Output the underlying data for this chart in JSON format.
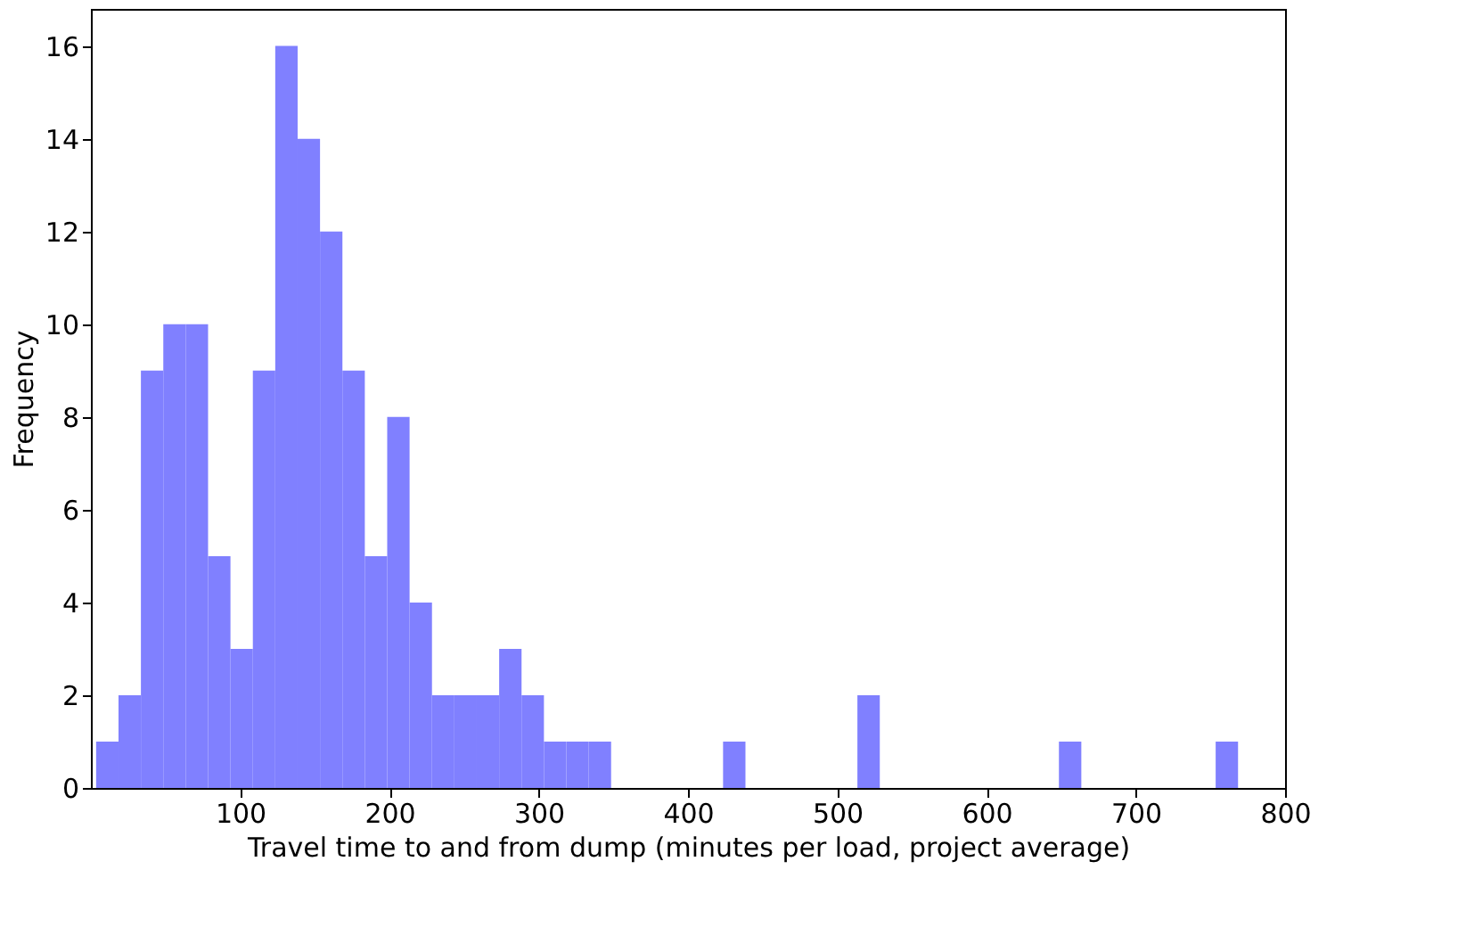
{
  "chart_data": {
    "type": "histogram",
    "xlabel": "Travel time to and from dump (minutes per load, project average)",
    "ylabel": "Frequency",
    "bins": [
      3.5,
      18.5,
      33.5,
      48.5,
      63.5,
      78.5,
      93.5,
      108.5,
      123.5,
      138.5,
      153.5,
      168.5,
      183.5,
      198.5,
      213.5,
      228.5,
      243.5,
      258.5,
      273.5,
      288.5,
      303.5,
      318.5,
      333.5,
      348.5,
      363.5,
      378.5,
      393.5,
      408.5,
      423.5,
      438.5,
      453.5,
      468.5,
      483.5,
      498.5,
      513.5,
      528.5,
      543.5,
      558.5,
      573.5,
      588.5,
      603.5,
      618.5,
      633.5,
      648.5,
      663.5,
      678.5,
      693.5,
      708.5,
      723.5,
      738.5,
      753.5,
      768.5
    ],
    "values": [
      1,
      2,
      9,
      10,
      10,
      5,
      3,
      9,
      16,
      14,
      12,
      9,
      5,
      8,
      4,
      2,
      2,
      2,
      3,
      2,
      1,
      1,
      1,
      0,
      0,
      0,
      0,
      0,
      1,
      0,
      0,
      0,
      0,
      0,
      2,
      0,
      0,
      0,
      0,
      0,
      0,
      0,
      0,
      1,
      0,
      0,
      0,
      0,
      0,
      0,
      1
    ],
    "color": "#8080ff",
    "xlim": [
      0,
      800
    ],
    "xticks": [
      100,
      200,
      300,
      400,
      500,
      600,
      700,
      800
    ],
    "ylim": [
      0,
      16.8
    ],
    "yticks": [
      0,
      2,
      4,
      6,
      8,
      10,
      12,
      14,
      16
    ],
    "grid": false
  }
}
